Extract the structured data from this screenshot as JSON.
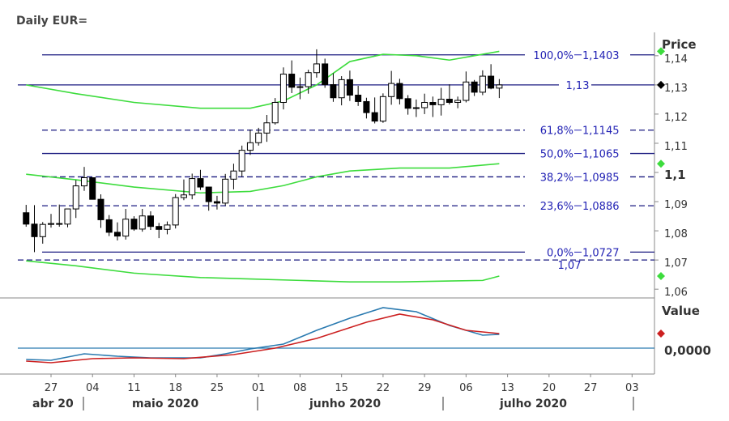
{
  "chart_data": {
    "type": "candlestick",
    "title": "Daily EUR=",
    "price_label": "Price",
    "indicator_label": "Value",
    "months": [
      "abr 20",
      "maio 2020",
      "junho 2020",
      "julho 2020"
    ],
    "xlim": [
      -4,
      72.7
    ],
    "xticks": [
      {
        "value": 0,
        "label": "27"
      },
      {
        "value": 5,
        "label": "04"
      },
      {
        "value": 10,
        "label": "11"
      },
      {
        "value": 15,
        "label": "18"
      },
      {
        "value": 20,
        "label": "25"
      },
      {
        "value": 25,
        "label": "01"
      },
      {
        "value": 30,
        "label": "08"
      },
      {
        "value": 35,
        "label": "15"
      },
      {
        "value": 40,
        "label": "22"
      },
      {
        "value": 45,
        "label": "29"
      },
      {
        "value": 50,
        "label": "06"
      },
      {
        "value": 55,
        "label": "13"
      },
      {
        "value": 60,
        "label": "20"
      },
      {
        "value": 65,
        "label": "27"
      },
      {
        "value": 70,
        "label": "03"
      }
    ],
    "ylim": [
      1.057,
      1.148
    ],
    "yticks": [
      {
        "value": 1.14,
        "label": "1,14"
      },
      {
        "value": 1.13,
        "label": "1,13"
      },
      {
        "value": 1.12,
        "label": "1,12"
      },
      {
        "value": 1.11,
        "label": "1,11"
      },
      {
        "value": 1.1,
        "label": "1,1"
      },
      {
        "value": 1.09,
        "label": "1,09"
      },
      {
        "value": 1.08,
        "label": "1,08"
      },
      {
        "value": 1.07,
        "label": "1,07"
      },
      {
        "value": 1.06,
        "label": "1,06"
      }
    ],
    "bold_ytick": 1.1,
    "candles": {
      "up_color": "#ffffff",
      "down_color": "#000000",
      "x": [
        -3,
        -2,
        -1,
        0,
        1,
        2,
        3,
        4,
        5,
        6,
        7,
        8,
        9,
        10,
        11,
        12,
        13,
        14,
        15,
        16,
        17,
        18,
        19,
        20,
        21,
        22,
        23,
        24,
        25,
        26,
        27,
        28,
        29,
        30,
        31,
        32,
        33,
        34,
        35,
        36,
        37,
        38,
        39,
        40,
        41,
        42,
        43,
        44,
        45,
        46,
        47,
        48,
        49,
        50,
        51,
        52,
        53,
        54
      ],
      "open": [
        1.0862,
        1.0823,
        1.078,
        1.0822,
        1.0825,
        1.0823,
        1.0875,
        1.0954,
        1.0982,
        1.0908,
        1.0838,
        1.0795,
        1.0782,
        1.084,
        1.0806,
        1.0851,
        1.0815,
        1.0805,
        1.082,
        1.0914,
        1.0923,
        1.0979,
        1.095,
        1.09,
        1.0895,
        1.0977,
        1.1005,
        1.1076,
        1.1102,
        1.1135,
        1.117,
        1.124,
        1.1337,
        1.1292,
        1.1294,
        1.1342,
        1.1372,
        1.1301,
        1.1256,
        1.1318,
        1.1265,
        1.1243,
        1.1205,
        1.1176,
        1.126,
        1.1305,
        1.1253,
        1.122,
        1.1222,
        1.124,
        1.1232,
        1.1251,
        1.124,
        1.1247,
        1.131,
        1.1275,
        1.133,
        1.1289
      ],
      "high": [
        1.0889,
        1.0888,
        1.083,
        1.0858,
        1.089,
        1.0875,
        1.0974,
        1.1019,
        1.0983,
        1.0925,
        1.0854,
        1.0829,
        1.0875,
        1.085,
        1.0875,
        1.0867,
        1.0827,
        1.0832,
        1.0926,
        1.0976,
        1.0996,
        1.1009,
        1.095,
        1.092,
        1.0995,
        1.103,
        1.1092,
        1.1147,
        1.1153,
        1.1197,
        1.1255,
        1.136,
        1.1384,
        1.1325,
        1.1352,
        1.1422,
        1.139,
        1.134,
        1.133,
        1.1349,
        1.1297,
        1.1256,
        1.1257,
        1.1271,
        1.1348,
        1.1321,
        1.1265,
        1.125,
        1.127,
        1.126,
        1.129,
        1.1302,
        1.126,
        1.1346,
        1.1317,
        1.135,
        1.1371,
        1.132
      ],
      "low": [
        1.0814,
        1.0727,
        1.0756,
        1.0811,
        1.0814,
        1.0812,
        1.0844,
        1.0937,
        1.0907,
        1.081,
        1.0782,
        1.0767,
        1.077,
        1.08,
        1.0797,
        1.0803,
        1.0775,
        1.0788,
        1.0808,
        1.0905,
        1.0908,
        1.094,
        1.0869,
        1.0873,
        1.0887,
        1.0942,
        1.0985,
        1.106,
        1.1092,
        1.1105,
        1.1164,
        1.1216,
        1.1272,
        1.1251,
        1.127,
        1.1325,
        1.129,
        1.1242,
        1.123,
        1.1245,
        1.1228,
        1.1185,
        1.1168,
        1.117,
        1.1232,
        1.1233,
        1.1198,
        1.119,
        1.12,
        1.119,
        1.1195,
        1.1233,
        1.122,
        1.124,
        1.1262,
        1.1265,
        1.1285,
        1.1255
      ],
      "close": [
        1.0823,
        1.078,
        1.0822,
        1.0825,
        1.0823,
        1.0875,
        1.0954,
        1.0982,
        1.0908,
        1.0838,
        1.0795,
        1.0782,
        1.084,
        1.0806,
        1.0851,
        1.0815,
        1.0805,
        1.082,
        1.0914,
        1.0923,
        1.0979,
        1.095,
        1.09,
        1.0895,
        1.0977,
        1.1005,
        1.1076,
        1.1102,
        1.1135,
        1.117,
        1.124,
        1.1337,
        1.1292,
        1.1294,
        1.1342,
        1.1372,
        1.1301,
        1.1256,
        1.1318,
        1.1265,
        1.1243,
        1.1205,
        1.1176,
        1.126,
        1.1305,
        1.1253,
        1.122,
        1.1222,
        1.124,
        1.1232,
        1.1251,
        1.124,
        1.1247,
        1.131,
        1.1275,
        1.133,
        1.1289,
        1.13
      ]
    },
    "bands": [
      {
        "color": "#3ddc3d",
        "x": [
          -3,
          3,
          10,
          18,
          24,
          28,
          32,
          36,
          40,
          44,
          48,
          51,
          54
        ],
        "values": [
          1.13,
          1.127,
          1.124,
          1.122,
          1.122,
          1.1245,
          1.13,
          1.138,
          1.1405,
          1.14,
          1.1385,
          1.14,
          1.1415
        ]
      },
      {
        "color": "#3ddc3d",
        "x": [
          -3,
          3,
          10,
          18,
          24,
          28,
          32,
          36,
          42,
          48,
          54
        ],
        "values": [
          1.0994,
          1.0975,
          1.095,
          1.093,
          1.0935,
          1.0955,
          1.0985,
          1.1005,
          1.1015,
          1.1015,
          1.103
        ]
      },
      {
        "color": "#3ddc3d",
        "x": [
          -3,
          3,
          10,
          18,
          24,
          30,
          36,
          42,
          48,
          52,
          54
        ],
        "values": [
          1.0697,
          1.068,
          1.0655,
          1.064,
          1.0635,
          1.063,
          1.0625,
          1.0625,
          1.0628,
          1.063,
          1.0645
        ]
      }
    ],
    "fibonacci": {
      "color": "#1a1a80",
      "text_color": "#2222b4",
      "labels": [
        "100,0%",
        "61,8%",
        "50,0%",
        "38,2%",
        "23,6%",
        "0,0%"
      ],
      "values": [
        1.1403,
        1.1145,
        1.1065,
        1.0985,
        1.0886,
        1.0727
      ],
      "value_labels": [
        "1,1403",
        "1,1145",
        "1,1065",
        "1,0985",
        "1,0886",
        "1,0727"
      ],
      "dashed": [
        false,
        true,
        false,
        true,
        true,
        false
      ]
    },
    "levels": {
      "values": [
        1.13,
        1.07
      ],
      "value_labels": [
        "1,13",
        "1,07"
      ],
      "dashed": [
        false,
        true
      ]
    },
    "last_close_marker": 1.13,
    "indicator": {
      "ylim": [
        -0.006,
        0.012
      ],
      "yticks": [
        {
          "value": 0,
          "label": "0,0000"
        }
      ],
      "zero_color": "#2a7ab0",
      "series": [
        {
          "color": "#2a7ab0",
          "x": [
            -3,
            0,
            4,
            8,
            12,
            18,
            21,
            24,
            28,
            32,
            36,
            40,
            44,
            48,
            52,
            54
          ],
          "values": [
            -0.0028,
            -0.003,
            -0.0014,
            -0.002,
            -0.0024,
            -0.0024,
            -0.0014,
            -0.0002,
            0.001,
            0.0044,
            0.0074,
            0.01,
            0.009,
            0.0056,
            0.0032,
            0.0034
          ]
        },
        {
          "color": "#cc2020",
          "x": [
            -3,
            0,
            5,
            10,
            16,
            22,
            27,
            32,
            38,
            42,
            46,
            50,
            54
          ],
          "values": [
            -0.0032,
            -0.0036,
            -0.0026,
            -0.0024,
            -0.0026,
            -0.0016,
            0,
            0.0024,
            0.0064,
            0.0084,
            0.007,
            0.0044,
            0.0036
          ]
        }
      ]
    }
  }
}
